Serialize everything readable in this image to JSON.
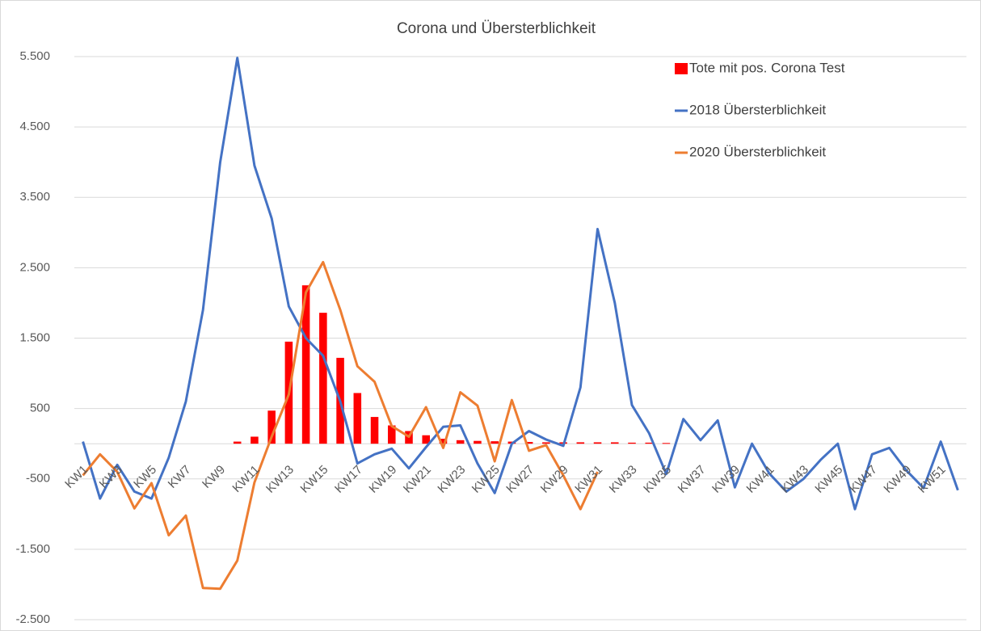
{
  "chart_data": {
    "type": "bar_line",
    "title": "Corona und Übersterblichkeit",
    "categories": [
      "KW1",
      null,
      "KW3",
      null,
      "KW5",
      null,
      "KW7",
      null,
      "KW9",
      null,
      "KW11",
      null,
      "KW13",
      null,
      "KW15",
      null,
      "KW17",
      null,
      "KW19",
      null,
      "KW21",
      null,
      "KW23",
      null,
      "KW25",
      null,
      "KW27",
      null,
      "KW29",
      null,
      "KW31",
      null,
      "KW33",
      null,
      "KW35",
      null,
      "KW37",
      null,
      "KW39",
      null,
      "KW41",
      null,
      "KW43",
      null,
      "KW45",
      null,
      "KW47",
      null,
      "KW49",
      null,
      "KW51",
      null
    ],
    "series": [
      {
        "name": "Tote mit pos. Corona Test",
        "type": "bar",
        "color": "#ff0000",
        "values": [
          null,
          null,
          null,
          null,
          null,
          null,
          null,
          null,
          null,
          30,
          100,
          470,
          1450,
          2250,
          1860,
          1220,
          720,
          380,
          260,
          180,
          120,
          70,
          50,
          40,
          35,
          30,
          25,
          20,
          20,
          20,
          20,
          20,
          15,
          15,
          10,
          null,
          null,
          null,
          null,
          null,
          null,
          null,
          null,
          null,
          null,
          null,
          null,
          null,
          null,
          null,
          null,
          null
        ]
      },
      {
        "name": "2018 Übersterblichkeit",
        "type": "line",
        "color": "#4472c4",
        "values": [
          30,
          -780,
          -300,
          -680,
          -780,
          -200,
          600,
          1900,
          4000,
          5480,
          3950,
          3200,
          1950,
          1500,
          1250,
          600,
          -280,
          -150,
          -70,
          -350,
          -50,
          240,
          260,
          -280,
          -700,
          0,
          180,
          60,
          -30,
          800,
          3050,
          2000,
          550,
          150,
          -430,
          350,
          50,
          330,
          -620,
          0,
          -420,
          -680,
          -500,
          -230,
          0,
          -930,
          -150,
          -60,
          -380,
          -630,
          30,
          -660
        ]
      },
      {
        "name": "2020 Übersterblichkeit",
        "type": "line",
        "color": "#ed7d31",
        "values": [
          -450,
          -150,
          -400,
          -920,
          -560,
          -1300,
          -1020,
          -2050,
          -2060,
          -1660,
          -550,
          100,
          700,
          2150,
          2580,
          1900,
          1100,
          880,
          250,
          100,
          520,
          -60,
          730,
          540,
          -250,
          620,
          -100,
          -20,
          -450,
          -930,
          -400,
          null,
          null,
          null,
          null,
          null,
          null,
          null,
          null,
          null,
          null,
          null,
          null,
          null,
          null,
          null,
          null,
          null,
          null,
          null,
          null,
          null
        ]
      }
    ],
    "ylim": [
      -2500,
      5500
    ],
    "yticks": [
      {
        "value": -2500,
        "label": "-2.500"
      },
      {
        "value": -1500,
        "label": "-1.500"
      },
      -500,
      500,
      {
        "value": 1500,
        "label": "1.500"
      },
      {
        "value": 2500,
        "label": "2.500"
      },
      {
        "value": 3500,
        "label": "3.500"
      },
      {
        "value": 4500,
        "label": "4.500"
      },
      {
        "value": 5500,
        "label": "5.500"
      }
    ],
    "grid": true,
    "legend": "top-right"
  }
}
